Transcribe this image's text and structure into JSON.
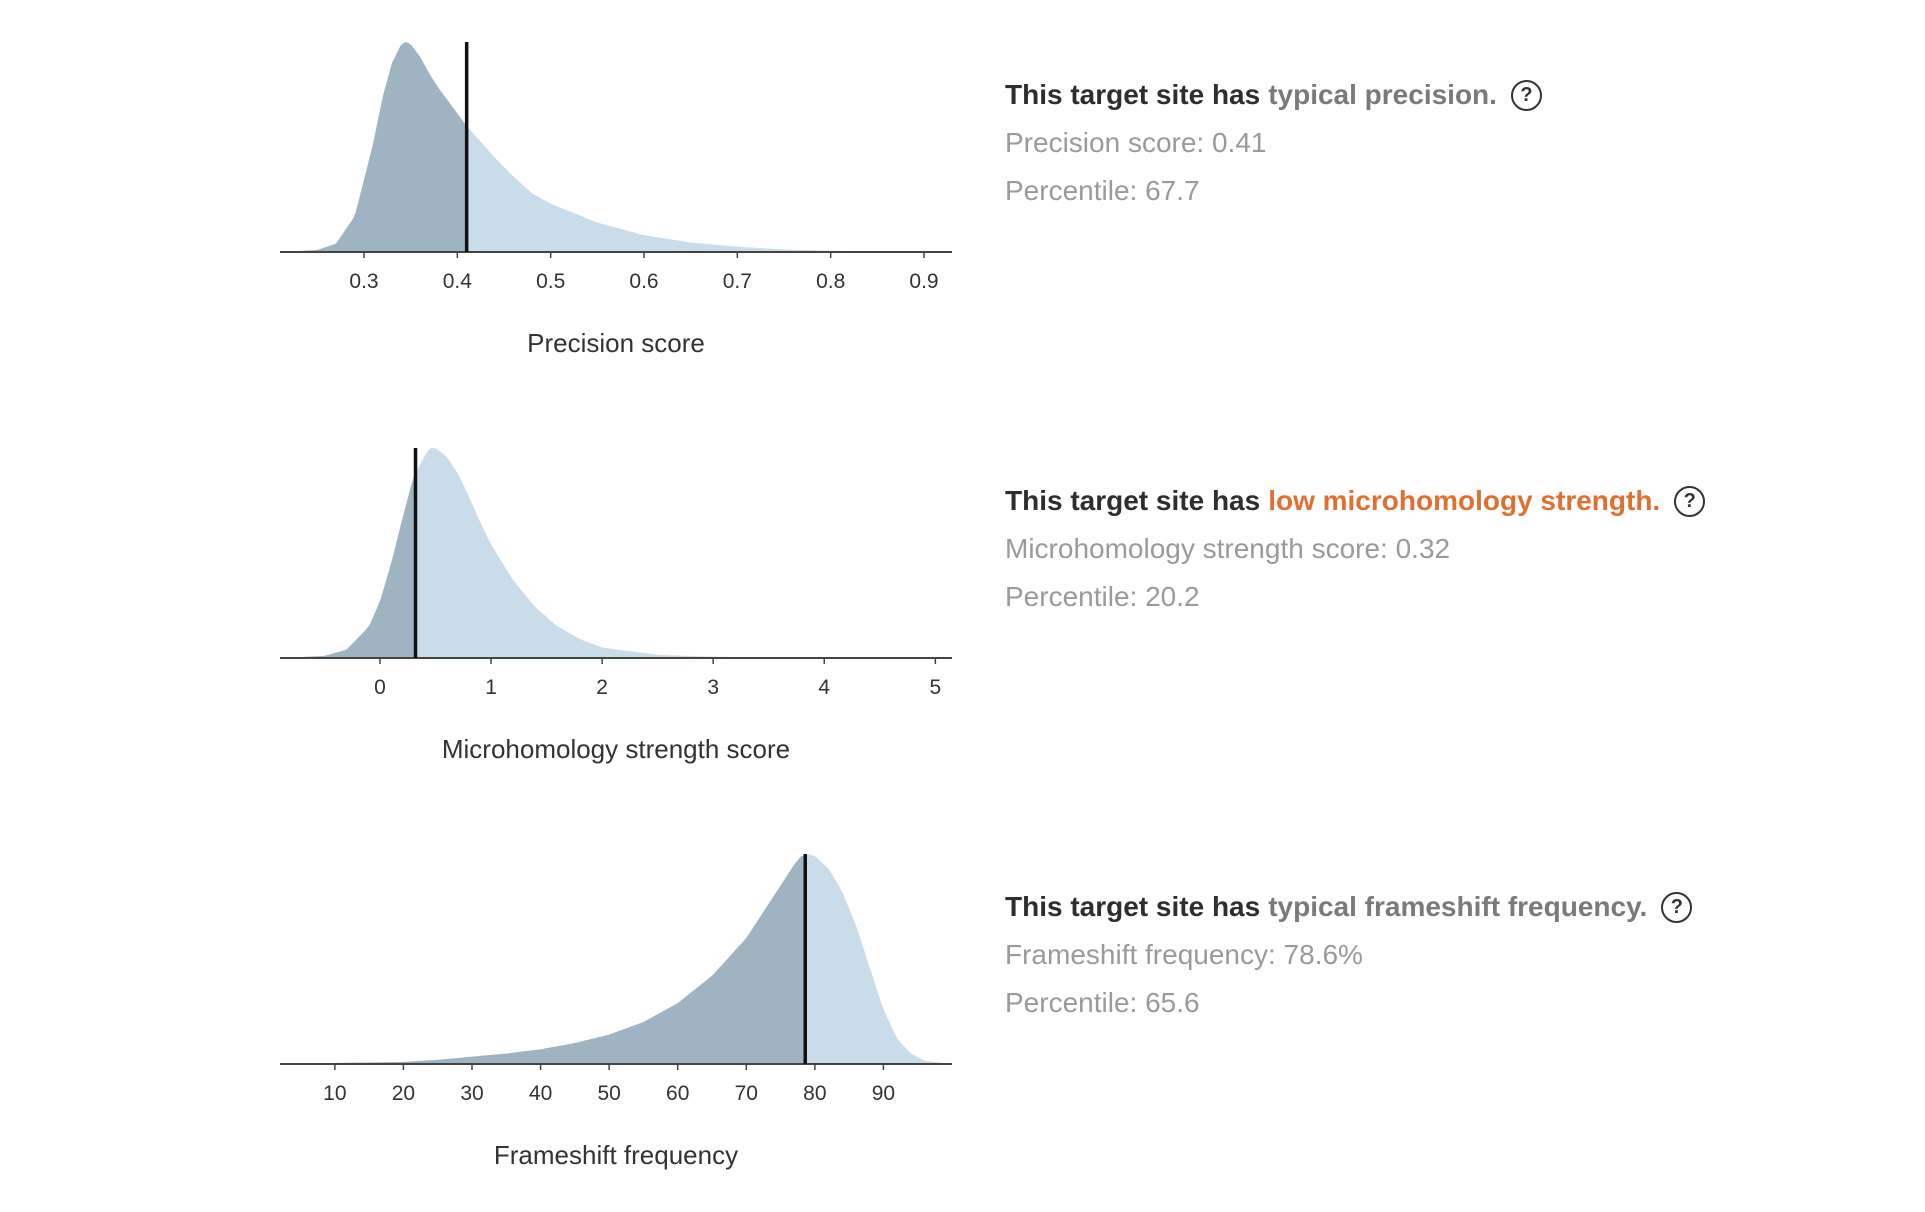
{
  "colors": {
    "fill_light": "#c9dcea",
    "fill_dark": "#9fb4c3",
    "marker": "#111111",
    "axis": "#444444",
    "typical": "#7a7a7a",
    "low": "#e07030",
    "headline": "#2e2e2e",
    "stat": "#9a9a9a"
  },
  "panels": [
    {
      "headline_prefix": "This target site has",
      "qualifier": "typical precision.",
      "qualifier_color": "#7a7a7a",
      "help_icon": "question-circle-icon",
      "score_text": "Precision score: 0.41",
      "percentile_text": "Percentile: 67.7"
    },
    {
      "headline_prefix": "This target site has",
      "qualifier": "low microhomology strength.",
      "qualifier_color": "#e07030",
      "help_icon": "question-circle-icon",
      "score_text": "Microhomology strength score: 0.32",
      "percentile_text": "Percentile: 20.2"
    },
    {
      "headline_prefix": "This target site has",
      "qualifier": "typical frameshift frequency.",
      "qualifier_color": "#7a7a7a",
      "help_icon": "question-circle-icon",
      "score_text": "Frameshift frequency: 78.6%",
      "percentile_text": "Percentile: 65.6"
    }
  ],
  "chart_data": [
    {
      "type": "area",
      "xlabel": "Precision score",
      "ylabel": "",
      "xlim": [
        0.21,
        0.93
      ],
      "ticks": [
        0.3,
        0.4,
        0.5,
        0.6,
        0.7,
        0.8,
        0.9
      ],
      "tick_labels": [
        "0.3",
        "0.4",
        "0.5",
        "0.6",
        "0.7",
        "0.8",
        "0.9"
      ],
      "marker_value": 0.41,
      "shading": "left of marker dark, right of marker light",
      "x": [
        0.21,
        0.25,
        0.27,
        0.29,
        0.31,
        0.32,
        0.33,
        0.34,
        0.345,
        0.35,
        0.36,
        0.37,
        0.38,
        0.39,
        0.41,
        0.42,
        0.44,
        0.46,
        0.48,
        0.5,
        0.55,
        0.6,
        0.65,
        0.7,
        0.75,
        0.8,
        0.85,
        0.93
      ],
      "y": [
        0,
        0.01,
        0.04,
        0.17,
        0.52,
        0.74,
        0.9,
        0.99,
        1.0,
        0.99,
        0.93,
        0.85,
        0.78,
        0.72,
        0.6,
        0.55,
        0.45,
        0.36,
        0.28,
        0.23,
        0.14,
        0.08,
        0.045,
        0.025,
        0.012,
        0.006,
        0.003,
        0
      ]
    },
    {
      "type": "area",
      "xlabel": "Microhomology strength score",
      "ylabel": "",
      "xlim": [
        -0.9,
        5.15
      ],
      "ticks": [
        0,
        1,
        2,
        3,
        4,
        5
      ],
      "tick_labels": [
        "0",
        "1",
        "2",
        "3",
        "4",
        "5"
      ],
      "marker_value": 0.32,
      "shading": "left of marker dark, right of marker light",
      "x": [
        -0.9,
        -0.5,
        -0.3,
        -0.1,
        0.0,
        0.1,
        0.2,
        0.3,
        0.4,
        0.45,
        0.5,
        0.6,
        0.7,
        0.8,
        0.9,
        1.0,
        1.2,
        1.4,
        1.6,
        1.8,
        2.0,
        2.5,
        3.0,
        3.5,
        4.0,
        5.15
      ],
      "y": [
        0,
        0.01,
        0.04,
        0.15,
        0.27,
        0.45,
        0.66,
        0.86,
        0.96,
        1.0,
        1.0,
        0.96,
        0.88,
        0.77,
        0.65,
        0.54,
        0.37,
        0.24,
        0.15,
        0.09,
        0.05,
        0.015,
        0.006,
        0.003,
        0.001,
        0
      ]
    },
    {
      "type": "area",
      "xlabel": "Frameshift frequency",
      "ylabel": "",
      "xlim": [
        2,
        100
      ],
      "ticks": [
        10,
        20,
        30,
        40,
        50,
        60,
        70,
        80,
        90
      ],
      "tick_labels": [
        "10",
        "20",
        "30",
        "40",
        "50",
        "60",
        "70",
        "80",
        "90"
      ],
      "marker_value": 78.6,
      "shading": "left of marker dark, right of marker light",
      "x": [
        2,
        10,
        20,
        25,
        30,
        35,
        40,
        45,
        50,
        55,
        60,
        65,
        70,
        72,
        74,
        76,
        77,
        78,
        79,
        80,
        82,
        84,
        86,
        88,
        90,
        92,
        94,
        96,
        100
      ],
      "y": [
        0,
        0.005,
        0.01,
        0.02,
        0.035,
        0.05,
        0.07,
        0.1,
        0.14,
        0.2,
        0.29,
        0.42,
        0.6,
        0.7,
        0.8,
        0.9,
        0.95,
        0.99,
        1.0,
        0.99,
        0.93,
        0.82,
        0.66,
        0.46,
        0.26,
        0.12,
        0.05,
        0.015,
        0
      ]
    }
  ]
}
